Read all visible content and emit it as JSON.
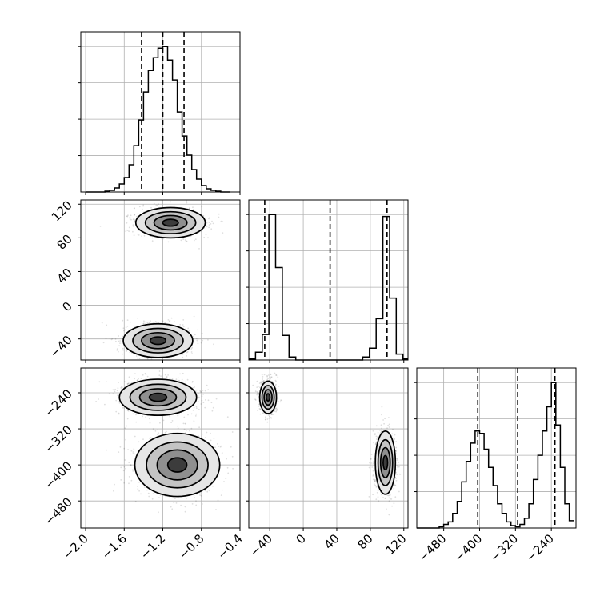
{
  "chart_data": {
    "type": "corner",
    "grid": true,
    "parameters": [
      {
        "key": "p1",
        "range": [
          -2.05,
          -0.4
        ],
        "ticks": [
          -2.0,
          -1.6,
          -1.2,
          -0.8,
          -0.4
        ],
        "tick_labels": [
          "−2.0",
          "−1.6",
          "−1.2",
          "−0.8",
          "−0.4"
        ]
      },
      {
        "key": "p2",
        "range": [
          -65,
          125
        ],
        "ticks": [
          -40,
          0,
          40,
          80,
          120
        ],
        "tick_labels": [
          "−40",
          "0",
          "40",
          "80",
          "120"
        ]
      },
      {
        "key": "p3",
        "range": [
          -540,
          -185
        ],
        "ticks": [
          -480,
          -400,
          -320,
          -240
        ],
        "tick_labels": [
          "−480",
          "−400",
          "−320",
          "−240"
        ]
      }
    ],
    "histograms": [
      {
        "param": "p1",
        "bin_edges": [
          -2.0,
          -1.95,
          -1.9,
          -1.85,
          -1.8,
          -1.75,
          -1.7,
          -1.65,
          -1.6,
          -1.55,
          -1.5,
          -1.45,
          -1.4,
          -1.35,
          -1.3,
          -1.25,
          -1.2,
          -1.15,
          -1.1,
          -1.05,
          -1.0,
          -0.95,
          -0.9,
          -0.85,
          -0.8,
          -0.75,
          -0.7,
          -0.65,
          -0.6,
          -0.55,
          -0.5
        ],
        "counts": [
          0,
          0,
          0,
          0,
          1,
          2,
          5,
          10,
          18,
          34,
          58,
          90,
          125,
          152,
          168,
          180,
          182,
          165,
          140,
          100,
          70,
          46,
          28,
          16,
          8,
          4,
          2,
          1,
          0,
          0
        ],
        "quantiles": [
          -1.42,
          -1.2,
          -0.98
        ]
      },
      {
        "param": "p2",
        "bin_edges": [
          -65,
          -57,
          -49,
          -41,
          -33,
          -25,
          -17,
          -9,
          -1,
          7,
          15,
          23,
          31,
          39,
          47,
          55,
          63,
          71,
          79,
          87,
          95,
          103,
          111,
          119,
          127
        ],
        "counts": [
          1,
          8,
          26,
          148,
          94,
          25,
          3,
          0,
          0,
          0,
          0,
          0,
          0,
          0,
          0,
          0,
          0,
          3,
          12,
          42,
          146,
          63,
          6,
          1
        ],
        "quantiles": [
          -46,
          32,
          100
        ]
      },
      {
        "param": "p3",
        "bin_edges": [
          -540,
          -530,
          -520,
          -510,
          -500,
          -490,
          -480,
          -470,
          -460,
          -450,
          -440,
          -430,
          -420,
          -410,
          -400,
          -390,
          -380,
          -370,
          -360,
          -350,
          -340,
          -330,
          -320,
          -310,
          -300,
          -290,
          -280,
          -270,
          -260,
          -250,
          -240,
          -230,
          -220,
          -210,
          -200,
          -190
        ],
        "counts": [
          0,
          0,
          0,
          0,
          0,
          1,
          3,
          5,
          12,
          22,
          38,
          55,
          70,
          80,
          78,
          65,
          50,
          35,
          20,
          12,
          5,
          2,
          1,
          3,
          8,
          20,
          40,
          60,
          80,
          100,
          120,
          85,
          50,
          20,
          6
        ],
        "quantiles": [
          -404,
          -315,
          -232
        ]
      }
    ],
    "scatter_panels": [
      {
        "x": "p1",
        "y": "p2",
        "modes": [
          {
            "cx": -1.12,
            "cy": 98,
            "sx": 0.18,
            "sy": 9
          },
          {
            "cx": -1.25,
            "cy": -42,
            "sx": 0.18,
            "sy": 10
          }
        ]
      },
      {
        "x": "p1",
        "y": "p3",
        "modes": [
          {
            "cx": -1.25,
            "cy": -250,
            "sx": 0.2,
            "sy": 20
          },
          {
            "cx": -1.05,
            "cy": -400,
            "sx": 0.22,
            "sy": 35
          }
        ]
      },
      {
        "x": "p2",
        "y": "p3",
        "modes": [
          {
            "cx": -42,
            "cy": -250,
            "sx": 5,
            "sy": 18
          },
          {
            "cx": 98,
            "cy": -395,
            "sx": 6,
            "sy": 35
          }
        ]
      }
    ]
  }
}
